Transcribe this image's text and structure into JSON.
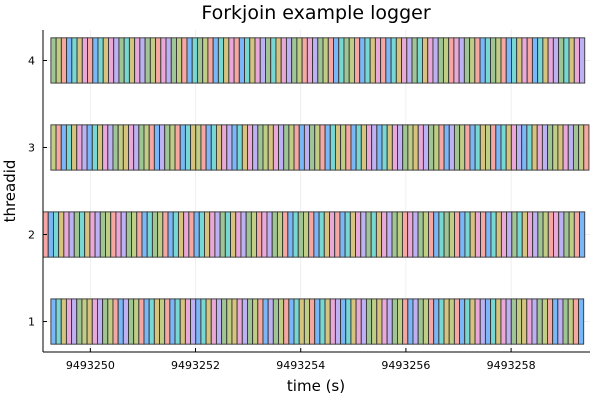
{
  "chart_data": {
    "type": "bar",
    "orientation": "horizontal",
    "title": "Forkjoin example logger",
    "xlabel": "time (s)",
    "ylabel": "threadid",
    "xlim": [
      9493249.1,
      9493259.5
    ],
    "ylim": [
      0.65,
      4.35
    ],
    "x_ticks": [
      9493250,
      9493252,
      9493254,
      9493256,
      9493258
    ],
    "x_tick_labels": [
      "9493250",
      "9493252",
      "9493254",
      "9493256",
      "9493258"
    ],
    "y_ticks": [
      1,
      2,
      3,
      4
    ],
    "y_tick_labels": [
      "1",
      "2",
      "3",
      "4"
    ],
    "grid": true,
    "legend": "none",
    "bar_half_height": 0.26,
    "palette": [
      "#6fb1f7",
      "#e8a1d6",
      "#bbc97a",
      "#6bd4cf",
      "#b9aaf2",
      "#f5a09a",
      "#d2be72",
      "#96c08a"
    ],
    "threads": [
      {
        "threadid": 1,
        "start": 9493249.25,
        "end": 9493259.38,
        "segments": 103
      },
      {
        "threadid": 2,
        "start": 9493249.1,
        "end": 9493259.4,
        "segments": 104
      },
      {
        "threadid": 3,
        "start": 9493249.25,
        "end": 9493259.48,
        "segments": 104
      },
      {
        "threadid": 4,
        "start": 9493249.25,
        "end": 9493259.4,
        "segments": 102
      }
    ]
  }
}
